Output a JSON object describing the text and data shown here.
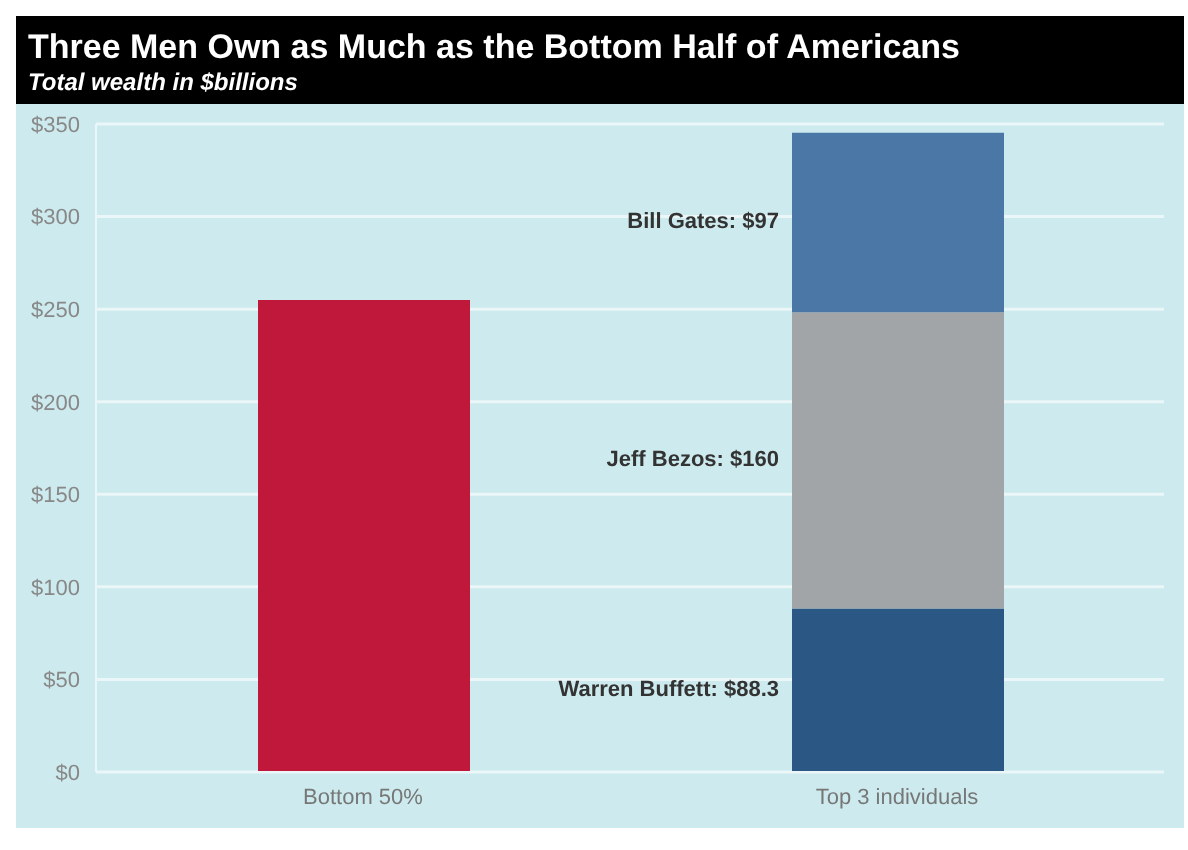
{
  "chart_data": {
    "type": "bar",
    "title": "Three Men Own as Much as the Bottom Half of Americans",
    "subtitle": "Total wealth in $billions",
    "categories": [
      "Bottom 50%",
      "Top 3 individuals"
    ],
    "stacked": true,
    "grid": "y",
    "ylim": [
      0,
      350
    ],
    "yticks": [
      {
        "value": 0,
        "label": "$0"
      },
      {
        "value": 50,
        "label": "$50"
      },
      {
        "value": 100,
        "label": "$100"
      },
      {
        "value": 150,
        "label": "$150"
      },
      {
        "value": 200,
        "label": "$200"
      },
      {
        "value": 250,
        "label": "$250"
      },
      {
        "value": 300,
        "label": "$300"
      },
      {
        "value": 350,
        "label": "$350"
      }
    ],
    "series": [
      {
        "color": "#c0183a",
        "values": [
          255,
          null
        ]
      },
      {
        "color": "#2a5784",
        "values": [
          null,
          88.3
        ]
      },
      {
        "color": "#a2a5a8",
        "values": [
          null,
          160
        ]
      },
      {
        "color": "#4a77a6",
        "values": [
          null,
          97
        ]
      }
    ],
    "annotations": [
      "Warren Buffett: $88.3",
      "Jeff Bezos: $160",
      "Bill Gates: $97"
    ]
  }
}
